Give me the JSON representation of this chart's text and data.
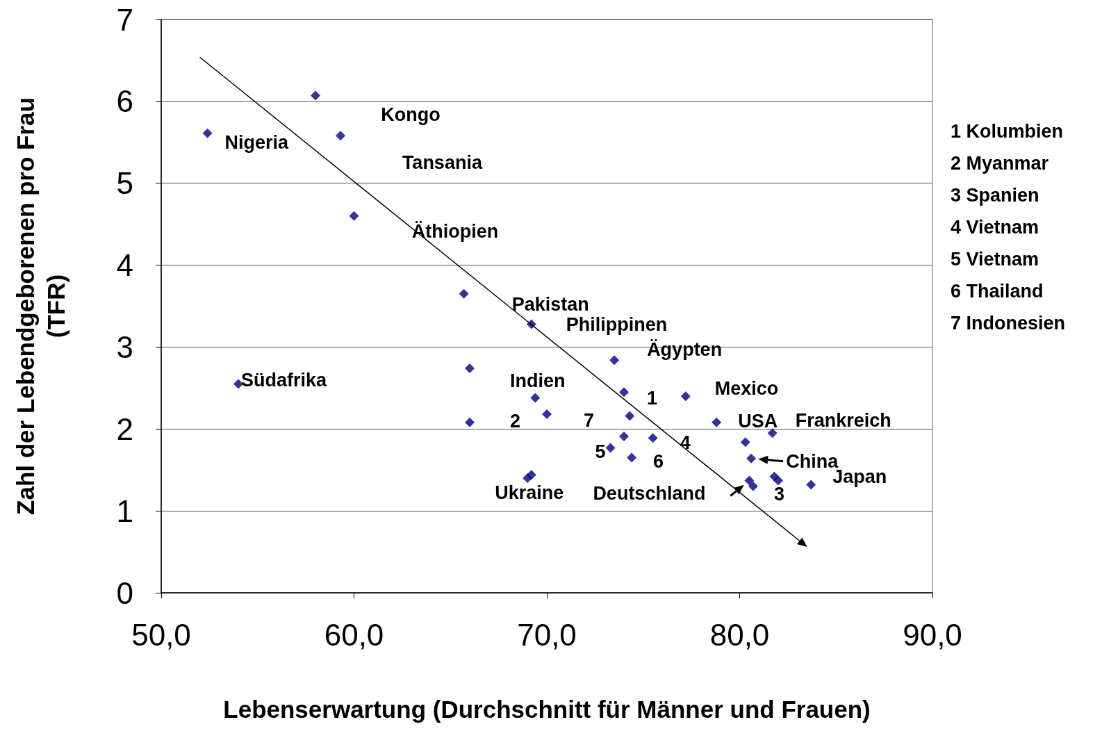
{
  "chart_data": {
    "type": "scatter",
    "xlabel": "Lebenserwartung (Durchschnitt für Männer und Frauen)",
    "ylabel": "Zahl der Lebendgeborenen pro Frau\n(TFR)",
    "xlim": [
      50,
      90
    ],
    "xticks": [
      {
        "value": 50,
        "label": "50,0"
      },
      {
        "value": 60,
        "label": "60,0"
      },
      {
        "value": 70,
        "label": "70,0"
      },
      {
        "value": 80,
        "label": "80,0"
      },
      {
        "value": 90,
        "label": "90,0"
      }
    ],
    "ylim": [
      0,
      7
    ],
    "yticks": [
      0,
      1,
      2,
      3,
      4,
      5,
      6,
      7
    ],
    "grid": "y",
    "marker": "diamond",
    "series": [
      {
        "color": "#000080",
        "x": [
          52.4,
          58.0,
          59.3,
          60.0,
          65.7,
          69.2,
          54.0,
          66.0,
          66.0,
          69.4,
          70.0,
          73.5,
          74.0,
          74.3,
          77.2,
          78.8,
          74.0,
          75.5,
          73.3,
          74.4,
          69.0,
          69.2,
          80.3,
          81.7,
          80.6,
          80.5,
          80.7,
          81.8,
          82.0,
          83.7
        ],
        "values": [
          5.61,
          6.07,
          5.58,
          4.6,
          3.65,
          3.28,
          2.55,
          2.74,
          2.08,
          2.38,
          2.18,
          2.84,
          2.45,
          2.16,
          2.4,
          2.08,
          1.91,
          1.89,
          1.77,
          1.65,
          1.4,
          1.44,
          1.84,
          1.95,
          1.64,
          1.37,
          1.3,
          1.42,
          1.37,
          1.32
        ]
      }
    ],
    "annotations": [
      "Kongo",
      {
        "text": "Nigeria",
        "x": 52.4,
        "y": 5.61
      },
      "Tansania",
      "Äthiopien",
      {
        "text": "Pakistan",
        "x": 65.7,
        "y": 3.65
      },
      {
        "text": "Philippinen",
        "x": 69.2,
        "y": 3.28
      },
      {
        "text": "Ägypten",
        "x": 73.5,
        "y": 2.84
      },
      {
        "text": "Südafrika",
        "x": 54.0,
        "y": 2.55
      },
      {
        "text": "Indien",
        "x": 66.0,
        "y": 2.74
      },
      {
        "text": "Mexico",
        "x": 77.2,
        "y": 2.4
      },
      {
        "text": "1",
        "x": 74.0,
        "y": 2.45
      },
      {
        "text": "2",
        "x": 66.0,
        "y": 2.08
      },
      {
        "text": "7",
        "x": 70.0,
        "y": 2.18
      },
      {
        "text": "USA",
        "x": 78.8,
        "y": 2.08
      },
      {
        "text": "Frankreich",
        "x": 81.7,
        "y": 1.95
      },
      {
        "text": "4",
        "x": 75.5,
        "y": 1.89
      },
      {
        "text": "5",
        "x": 73.3,
        "y": 1.77
      },
      {
        "text": "6",
        "x": 74.4,
        "y": 1.65
      },
      {
        "text": "China",
        "x": 80.6,
        "y": 1.64
      },
      {
        "text": "Japan",
        "x": 83.7,
        "y": 1.32
      },
      {
        "text": "Ukraine",
        "x": 69.0,
        "y": 1.4
      },
      {
        "text": "Deutschland",
        "x": 80.5,
        "y": 1.37
      },
      {
        "text": "3",
        "x": 82.0,
        "y": 1.37
      },
      "1 Kolumbien",
      "2 Myanmar",
      "3 Spanien",
      "4 Vietnam",
      "5 Vietnam",
      "6 Thailand",
      "7 Indonesien"
    ]
  }
}
